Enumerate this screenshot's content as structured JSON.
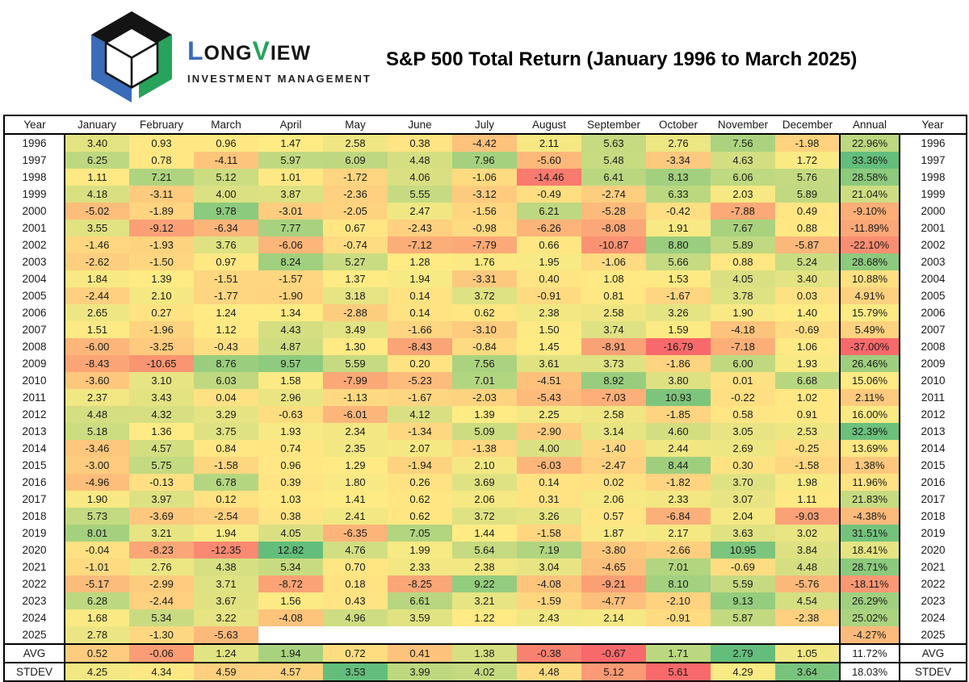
{
  "header": {
    "brand": {
      "part1": "L",
      "part2": "ONG",
      "part3": "V",
      "part4": "IEW",
      "subtitle": "INVESTMENT MANAGEMENT",
      "logo_colors": {
        "black": "#141414",
        "blue": "#3a6cb8",
        "green": "#27a35b"
      }
    },
    "title": "S&P 500 Total Return (January 1996 to March 2025)"
  },
  "chart_data": {
    "type": "heatmap",
    "title": "S&P 500 Total Return (January 1996 to March 2025)",
    "columns": [
      "Year",
      "January",
      "February",
      "March",
      "April",
      "May",
      "June",
      "July",
      "August",
      "September",
      "October",
      "November",
      "December",
      "Annual",
      "Year"
    ],
    "color_scale": {
      "min_color": "#F8696B",
      "mid_color": "#FFEB84",
      "max_color": "#63BE7B",
      "midpoint": "median"
    },
    "rows": [
      {
        "year": "1996",
        "months": [
          3.4,
          0.93,
          0.96,
          1.47,
          2.58,
          0.38,
          -4.42,
          2.11,
          5.63,
          2.76,
          7.56,
          -1.98
        ],
        "annual": 22.96
      },
      {
        "year": "1997",
        "months": [
          6.25,
          0.78,
          -4.11,
          5.97,
          6.09,
          4.48,
          7.96,
          -5.6,
          5.48,
          -3.34,
          4.63,
          1.72
        ],
        "annual": 33.36
      },
      {
        "year": "1998",
        "months": [
          1.11,
          7.21,
          5.12,
          1.01,
          -1.72,
          4.06,
          -1.06,
          -14.46,
          6.41,
          8.13,
          6.06,
          5.76
        ],
        "annual": 28.58
      },
      {
        "year": "1999",
        "months": [
          4.18,
          -3.11,
          4.0,
          3.87,
          -2.36,
          5.55,
          -3.12,
          -0.49,
          -2.74,
          6.33,
          2.03,
          5.89
        ],
        "annual": 21.04
      },
      {
        "year": "2000",
        "months": [
          -5.02,
          -1.89,
          9.78,
          -3.01,
          -2.05,
          2.47,
          -1.56,
          6.21,
          -5.28,
          -0.42,
          -7.88,
          0.49
        ],
        "annual": -9.1
      },
      {
        "year": "2001",
        "months": [
          3.55,
          -9.12,
          -6.34,
          7.77,
          0.67,
          -2.43,
          -0.98,
          -6.26,
          -8.08,
          1.91,
          7.67,
          0.88
        ],
        "annual": -11.89
      },
      {
        "year": "2002",
        "months": [
          -1.46,
          -1.93,
          3.76,
          -6.06,
          -0.74,
          -7.12,
          -7.79,
          0.66,
          -10.87,
          8.8,
          5.89,
          -5.87
        ],
        "annual": -22.1
      },
      {
        "year": "2003",
        "months": [
          -2.62,
          -1.5,
          0.97,
          8.24,
          5.27,
          1.28,
          1.76,
          1.95,
          -1.06,
          5.66,
          0.88,
          5.24
        ],
        "annual": 28.68
      },
      {
        "year": "2004",
        "months": [
          1.84,
          1.39,
          -1.51,
          -1.57,
          1.37,
          1.94,
          -3.31,
          0.4,
          1.08,
          1.53,
          4.05,
          3.4
        ],
        "annual": 10.88
      },
      {
        "year": "2005",
        "months": [
          -2.44,
          2.1,
          -1.77,
          -1.9,
          3.18,
          0.14,
          3.72,
          -0.91,
          0.81,
          -1.67,
          3.78,
          0.03
        ],
        "annual": 4.91
      },
      {
        "year": "2006",
        "months": [
          2.65,
          0.27,
          1.24,
          1.34,
          -2.88,
          0.14,
          0.62,
          2.38,
          2.58,
          3.26,
          1.9,
          1.4
        ],
        "annual": 15.79
      },
      {
        "year": "2007",
        "months": [
          1.51,
          -1.96,
          1.12,
          4.43,
          3.49,
          -1.66,
          -3.1,
          1.5,
          3.74,
          1.59,
          -4.18,
          -0.69
        ],
        "annual": 5.49
      },
      {
        "year": "2008",
        "months": [
          -6.0,
          -3.25,
          -0.43,
          4.87,
          1.3,
          -8.43,
          -0.84,
          1.45,
          -8.91,
          -16.79,
          -7.18,
          1.06
        ],
        "annual": -37.0
      },
      {
        "year": "2009",
        "months": [
          -8.43,
          -10.65,
          8.76,
          9.57,
          5.59,
          0.2,
          7.56,
          3.61,
          3.73,
          -1.86,
          6.0,
          1.93
        ],
        "annual": 26.46
      },
      {
        "year": "2010",
        "months": [
          -3.6,
          3.1,
          6.03,
          1.58,
          -7.99,
          -5.23,
          7.01,
          -4.51,
          8.92,
          3.8,
          0.01,
          6.68
        ],
        "annual": 15.06
      },
      {
        "year": "2011",
        "months": [
          2.37,
          3.43,
          0.04,
          2.96,
          -1.13,
          -1.67,
          -2.03,
          -5.43,
          -7.03,
          10.93,
          -0.22,
          1.02
        ],
        "annual": 2.11
      },
      {
        "year": "2012",
        "months": [
          4.48,
          4.32,
          3.29,
          -0.63,
          -6.01,
          4.12,
          1.39,
          2.25,
          2.58,
          -1.85,
          0.58,
          0.91
        ],
        "annual": 16.0
      },
      {
        "year": "2013",
        "months": [
          5.18,
          1.36,
          3.75,
          1.93,
          2.34,
          -1.34,
          5.09,
          -2.9,
          3.14,
          4.6,
          3.05,
          2.53
        ],
        "annual": 32.39
      },
      {
        "year": "2014",
        "months": [
          -3.46,
          4.57,
          0.84,
          0.74,
          2.35,
          2.07,
          -1.38,
          4.0,
          -1.4,
          2.44,
          2.69,
          -0.25
        ],
        "annual": 13.69
      },
      {
        "year": "2015",
        "months": [
          -3.0,
          5.75,
          -1.58,
          0.96,
          1.29,
          -1.94,
          2.1,
          -6.03,
          -2.47,
          8.44,
          0.3,
          -1.58
        ],
        "annual": 1.38
      },
      {
        "year": "2016",
        "months": [
          -4.96,
          -0.13,
          6.78,
          0.39,
          1.8,
          0.26,
          3.69,
          0.14,
          0.02,
          -1.82,
          3.7,
          1.98
        ],
        "annual": 11.96
      },
      {
        "year": "2017",
        "months": [
          1.9,
          3.97,
          0.12,
          1.03,
          1.41,
          0.62,
          2.06,
          0.31,
          2.06,
          2.33,
          3.07,
          1.11
        ],
        "annual": 21.83
      },
      {
        "year": "2018",
        "months": [
          5.73,
          -3.69,
          -2.54,
          0.38,
          2.41,
          0.62,
          3.72,
          3.26,
          0.57,
          -6.84,
          2.04,
          -9.03
        ],
        "annual": -4.38
      },
      {
        "year": "2019",
        "months": [
          8.01,
          3.21,
          1.94,
          4.05,
          -6.35,
          7.05,
          1.44,
          -1.58,
          1.87,
          2.17,
          3.63,
          3.02
        ],
        "annual": 31.51
      },
      {
        "year": "2020",
        "months": [
          -0.04,
          -8.23,
          -12.35,
          12.82,
          4.76,
          1.99,
          5.64,
          7.19,
          -3.8,
          -2.66,
          10.95,
          3.84
        ],
        "annual": 18.41
      },
      {
        "year": "2021",
        "months": [
          -1.01,
          2.76,
          4.38,
          5.34,
          0.7,
          2.33,
          2.38,
          3.04,
          -4.65,
          7.01,
          -0.69,
          4.48
        ],
        "annual": 28.71
      },
      {
        "year": "2022",
        "months": [
          -5.17,
          -2.99,
          3.71,
          -8.72,
          0.18,
          -8.25,
          9.22,
          -4.08,
          -9.21,
          8.1,
          5.59,
          -5.76
        ],
        "annual": -18.11
      },
      {
        "year": "2023",
        "months": [
          6.28,
          -2.44,
          3.67,
          1.56,
          0.43,
          6.61,
          3.21,
          -1.59,
          -4.77,
          -2.1,
          9.13,
          4.54
        ],
        "annual": 26.29
      },
      {
        "year": "2024",
        "months": [
          1.68,
          5.34,
          3.22,
          -4.08,
          4.96,
          3.59,
          1.22,
          2.43,
          2.14,
          -0.91,
          5.87,
          -2.38
        ],
        "annual": 25.02
      },
      {
        "year": "2025",
        "months": [
          2.78,
          -1.3,
          -5.63,
          null,
          null,
          null,
          null,
          null,
          null,
          null,
          null,
          null
        ],
        "annual": -4.27
      }
    ],
    "summary_rows": [
      {
        "label": "AVG",
        "months": [
          0.52,
          -0.06,
          1.24,
          1.94,
          0.72,
          0.41,
          1.38,
          -0.38,
          -0.67,
          1.71,
          2.79,
          1.05
        ],
        "annual": 11.72,
        "scale": "normal"
      },
      {
        "label": "STDEV",
        "months": [
          4.25,
          4.34,
          4.59,
          4.57,
          3.53,
          3.99,
          4.02,
          4.48,
          5.12,
          5.61,
          4.29,
          3.64
        ],
        "annual": 18.03,
        "scale": "reversed"
      }
    ]
  }
}
